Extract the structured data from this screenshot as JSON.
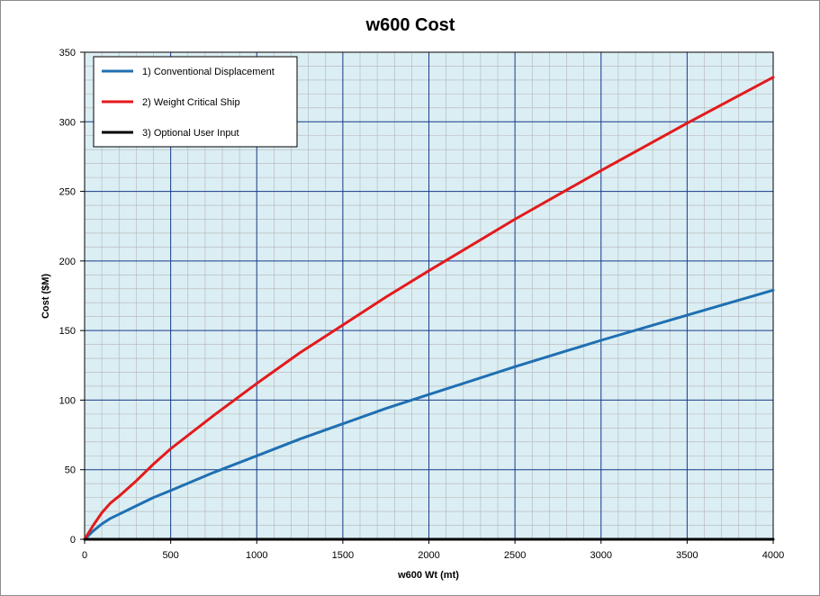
{
  "chart_data": {
    "type": "line",
    "title": "w600 Cost",
    "xlabel": "w600 Wt (mt)",
    "ylabel": "Cost ($M)",
    "xlim": [
      0,
      4000
    ],
    "ylim": [
      0,
      350
    ],
    "x_ticks": [
      "0",
      "500",
      "1000",
      "1500",
      "2000",
      "2500",
      "3000",
      "3500",
      "4000"
    ],
    "y_ticks": [
      "0",
      "50",
      "100",
      "150",
      "200",
      "250",
      "300",
      "350"
    ],
    "grid": true,
    "plot_background": "#dbeef3",
    "legend_position": "top-left",
    "series": [
      {
        "name": "1) Conventional Displacement",
        "color": "#1f6fb2",
        "x": [
          0,
          50,
          100,
          150,
          200,
          300,
          400,
          500,
          750,
          1000,
          1250,
          1500,
          1750,
          2000,
          2500,
          3000,
          3500,
          4000
        ],
        "y": [
          0,
          6,
          11,
          15,
          18,
          24,
          30,
          35,
          48,
          60,
          72,
          83,
          94,
          104,
          124,
          143,
          161,
          179
        ]
      },
      {
        "name": "2) Weight Critical Ship",
        "color": "#e31a1c",
        "x": [
          0,
          50,
          100,
          150,
          200,
          300,
          400,
          500,
          750,
          1000,
          1250,
          1500,
          1750,
          2000,
          2500,
          3000,
          3500,
          4000
        ],
        "y": [
          0,
          10,
          19,
          26,
          31,
          42,
          54,
          65,
          89,
          112,
          134,
          154,
          174,
          193,
          230,
          265,
          299,
          332
        ]
      },
      {
        "name": "3) Optional User Input",
        "color": "#000000",
        "x": [
          0,
          4000
        ],
        "y": [
          0,
          0
        ]
      }
    ]
  }
}
